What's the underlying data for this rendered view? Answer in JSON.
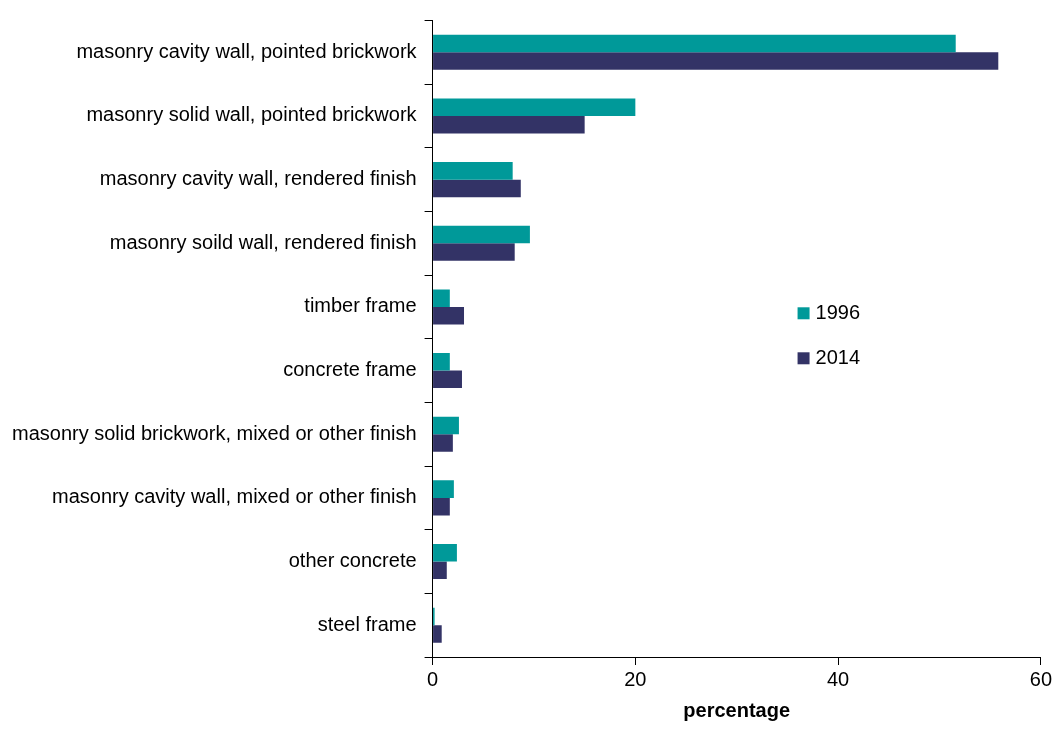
{
  "chart_data": {
    "type": "bar",
    "orientation": "horizontal",
    "xlabel": "percentage",
    "categories": [
      "masonry cavity wall, pointed brickwork",
      "masonry solid wall, pointed brickwork",
      "masonry cavity wall, rendered finish",
      "masonry soild wall, rendered finish",
      "timber frame",
      "concrete frame",
      "masonry solid brickwork, mixed or other finish",
      "masonry cavity wall, mixed or other finish",
      "other concrete",
      "steel frame"
    ],
    "series": [
      {
        "name": "1996",
        "color": "#009999",
        "values": [
          51.6,
          20.0,
          7.9,
          9.6,
          1.7,
          1.7,
          2.6,
          2.1,
          2.4,
          0.2
        ]
      },
      {
        "name": "2014",
        "color": "#333366",
        "values": [
          55.8,
          15.0,
          8.7,
          8.1,
          3.1,
          2.9,
          2.0,
          1.7,
          1.4,
          0.9
        ]
      }
    ],
    "xlim": [
      0,
      60
    ],
    "xticks": [
      0,
      20,
      40,
      60
    ],
    "grid": false,
    "legend": "right"
  }
}
